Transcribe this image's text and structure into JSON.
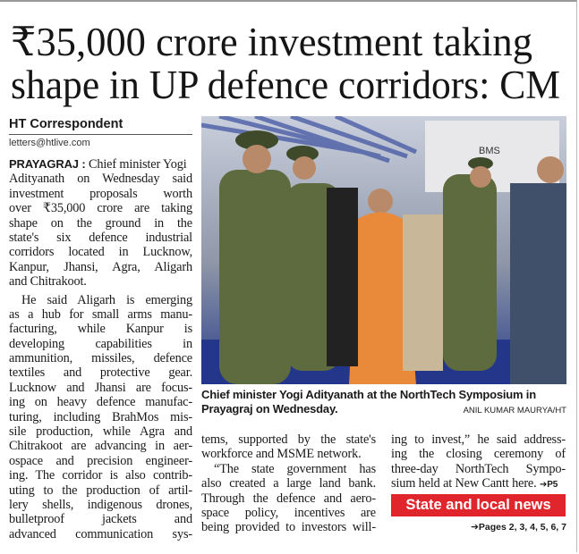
{
  "headline": [
    "₹35,000 crore investment taking",
    "shape in UP defence corridors: CM"
  ],
  "byline": "HT Correspondent",
  "email": "letters@htlive.com",
  "dateline": "PRAYAGRAJ :",
  "columns": [
    [
      [
        "Chief minister Yogi",
        "Adityanath on Wednesday said",
        "investment proposals worth",
        "over ₹35,000 crore are taking",
        "shape on the ground in the",
        "state's six defence industrial",
        "corridors located in Lucknow,",
        "Kanpur, Jhansi, Agra, Aligarh",
        "and Chitrakoot."
      ],
      [
        "He said Aligarh is emerging",
        "as a hub for small arms manu-",
        "facturing, while Kanpur is",
        "developing capabilities in",
        "ammunition, missiles, defence",
        "textiles and protective gear.",
        "Lucknow and Jhansi are focus-",
        "ing on heavy defence manufac-",
        "turing, including BrahMos mis-",
        "sile production, while Agra and",
        "Chitrakoot are advancing in aer-",
        "ospace and precision engineer-",
        "ing. The corridor is also contrib-",
        "uting to the production of artil-",
        "lery shells, indigenous drones,",
        "bulletproof jackets and",
        "advanced communication sys-"
      ]
    ],
    [
      [
        "tems, supported by the state's",
        "workforce and MSME network."
      ],
      [
        "“The state government has",
        "also created a large land bank.",
        "Through the defence and aero-",
        "space policy, incentives are",
        "being provided to investors will-"
      ]
    ],
    [
      [
        "ing to invest,” he said address-",
        "ing the closing ceremony of",
        "three-day NorthTech Sympo-",
        "sium held at New Cantt here."
      ]
    ]
  ],
  "continued": "➔P5",
  "photo": {
    "sign": "BMS",
    "caption": "Chief minister Yogi Adityanath at the NorthTech Symposium in Prayagraj on Wednesday.",
    "credit": "ANIL KUMAR MAURYA/HT"
  },
  "section_box": "State and local news",
  "pages": "➔Pages 2, 3, 4, 5, 6, 7"
}
